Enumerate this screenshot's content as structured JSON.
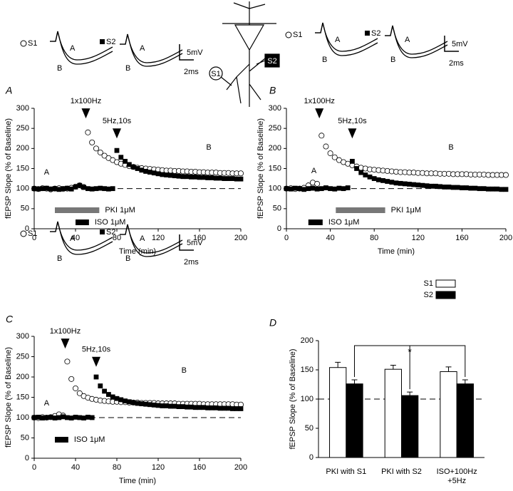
{
  "schematic": {
    "s1": "S1",
    "s2": "S2"
  },
  "chart_data": [
    {
      "type": "scatter",
      "panel": "A",
      "inset": {
        "s1": "S1",
        "s2": "S2",
        "a1": "A",
        "b1": "B",
        "a2": "A",
        "b2": "B",
        "scale_y": "5mV",
        "scale_x": "2ms"
      },
      "xlabel": "Time (min)",
      "ylabel": "fEPSP Slope (% of Baseline)",
      "xlim": [
        0,
        200
      ],
      "xticks": [
        0,
        40,
        80,
        120,
        160,
        200
      ],
      "ylim": [
        0,
        300
      ],
      "yticks": [
        0,
        50,
        100,
        150,
        200,
        250,
        300
      ],
      "baseline": 100,
      "x": [
        0,
        4,
        8,
        12,
        16,
        20,
        24,
        28,
        32,
        36,
        40,
        44,
        48,
        52,
        56,
        60,
        64,
        68,
        72,
        76,
        80,
        84,
        88,
        92,
        96,
        100,
        104,
        108,
        112,
        116,
        120,
        124,
        128,
        132,
        136,
        140,
        144,
        148,
        152,
        156,
        160,
        164,
        168,
        172,
        176,
        180,
        184,
        188,
        192,
        196,
        200
      ],
      "series": [
        {
          "name": "S1",
          "marker": "circle",
          "color": "#ffffff",
          "values": [
            100,
            99,
            101,
            100,
            98,
            100,
            101,
            99,
            100,
            102,
            105,
            108,
            104,
            240,
            215,
            200,
            190,
            182,
            176,
            171,
            166,
            162,
            159,
            156,
            154,
            152,
            151,
            150,
            149,
            148,
            147,
            146,
            145,
            145,
            144,
            144,
            143,
            143,
            142,
            142,
            141,
            141,
            140,
            140,
            140,
            139,
            139,
            139,
            138,
            138,
            138
          ]
        },
        {
          "name": "S2",
          "marker": "square",
          "color": "#000000",
          "values": [
            100,
            99,
            100,
            101,
            99,
            100,
            98,
            100,
            101,
            99,
            104,
            108,
            103,
            100,
            99,
            100,
            101,
            100,
            99,
            100,
            195,
            178,
            168,
            160,
            154,
            150,
            146,
            143,
            141,
            139,
            137,
            135,
            134,
            133,
            132,
            131,
            130,
            130,
            129,
            129,
            128,
            128,
            127,
            127,
            126,
            126,
            125,
            125,
            125,
            124,
            124
          ]
        }
      ],
      "annotations": [
        {
          "text": "1x100Hz",
          "x": 50,
          "y": 275,
          "arrow": true
        },
        {
          "text": "5Hz,10s",
          "x": 80,
          "y": 225,
          "arrow": true
        },
        {
          "text": "A",
          "x": 12,
          "y": 140
        },
        {
          "text": "B",
          "x": 169,
          "y": 202
        }
      ],
      "drug_bars": [
        {
          "label": "PKI 1μM",
          "start": 20,
          "end": 63,
          "color": "#777777"
        },
        {
          "label": "ISO 1μM",
          "start": 40,
          "end": 53,
          "color": "#000000"
        }
      ]
    },
    {
      "type": "scatter",
      "panel": "B",
      "inset": {
        "s1": "S1",
        "s2": "S2",
        "a1": "A",
        "b1": "B",
        "a2": "A",
        "b2": "B",
        "scale_y": "5mV",
        "scale_x": "2ms"
      },
      "xlabel": "Time (min)",
      "ylabel": "fEPSP Slope (% of Baseline)",
      "xlim": [
        0,
        200
      ],
      "xticks": [
        0,
        40,
        80,
        120,
        160,
        200
      ],
      "ylim": [
        0,
        300
      ],
      "yticks": [
        0,
        50,
        100,
        150,
        200,
        250,
        300
      ],
      "baseline": 100,
      "x": [
        0,
        4,
        8,
        12,
        16,
        20,
        24,
        28,
        32,
        36,
        40,
        44,
        48,
        52,
        56,
        60,
        64,
        68,
        72,
        76,
        80,
        84,
        88,
        92,
        96,
        100,
        104,
        108,
        112,
        116,
        120,
        124,
        128,
        132,
        136,
        140,
        144,
        148,
        152,
        156,
        160,
        164,
        168,
        172,
        176,
        180,
        184,
        188,
        192,
        196,
        200
      ],
      "series": [
        {
          "name": "S1",
          "marker": "circle",
          "color": "#ffffff",
          "values": [
            100,
            101,
            99,
            100,
            102,
            108,
            115,
            112,
            232,
            205,
            188,
            178,
            171,
            166,
            162,
            158,
            155,
            152,
            150,
            148,
            147,
            146,
            145,
            144,
            143,
            142,
            141,
            141,
            140,
            140,
            139,
            139,
            138,
            138,
            138,
            137,
            137,
            137,
            136,
            136,
            136,
            136,
            135,
            135,
            135,
            135,
            134,
            134,
            134,
            134,
            134
          ]
        },
        {
          "name": "S2",
          "marker": "square",
          "color": "#000000",
          "values": [
            100,
            99,
            101,
            100,
            98,
            100,
            101,
            99,
            100,
            102,
            100,
            99,
            101,
            100,
            102,
            168,
            150,
            140,
            134,
            129,
            125,
            122,
            120,
            118,
            116,
            114,
            113,
            112,
            111,
            110,
            109,
            108,
            107,
            106,
            106,
            105,
            104,
            104,
            103,
            103,
            102,
            102,
            101,
            101,
            100,
            100,
            99,
            99,
            99,
            98,
            98
          ]
        }
      ],
      "annotations": [
        {
          "text": "1x100Hz",
          "x": 30,
          "y": 275,
          "arrow": true
        },
        {
          "text": "5Hz,10s",
          "x": 60,
          "y": 225,
          "arrow": true
        },
        {
          "text": "A",
          "x": 25,
          "y": 144
        },
        {
          "text": "B",
          "x": 150,
          "y": 202
        }
      ],
      "drug_bars": [
        {
          "label": "PKI 1μM",
          "start": 45,
          "end": 90,
          "color": "#777777"
        },
        {
          "label": "ISO 1μM",
          "start": 20,
          "end": 33,
          "color": "#000000"
        }
      ]
    },
    {
      "type": "scatter",
      "panel": "C",
      "inset": {
        "s1": "S1",
        "s2": "S2",
        "a1": "A",
        "b1": "B",
        "a2": "A",
        "b2": "B",
        "scale_y": "5mV",
        "scale_x": "2ms"
      },
      "xlabel": "Time (min)",
      "ylabel": "fEPSP Slope (% of Baseline)",
      "xlim": [
        0,
        200
      ],
      "xticks": [
        0,
        40,
        80,
        120,
        160,
        200
      ],
      "ylim": [
        0,
        300
      ],
      "yticks": [
        0,
        50,
        100,
        150,
        200,
        250,
        300
      ],
      "baseline": 100,
      "x": [
        0,
        4,
        8,
        12,
        16,
        20,
        24,
        28,
        32,
        36,
        40,
        44,
        48,
        52,
        56,
        60,
        64,
        68,
        72,
        76,
        80,
        84,
        88,
        92,
        96,
        100,
        104,
        108,
        112,
        116,
        120,
        124,
        128,
        132,
        136,
        140,
        144,
        148,
        152,
        156,
        160,
        164,
        168,
        172,
        176,
        180,
        184,
        188,
        192,
        196,
        200
      ],
      "series": [
        {
          "name": "S1",
          "marker": "circle",
          "color": "#ffffff",
          "values": [
            100,
            99,
            101,
            100,
            101,
            104,
            108,
            105,
            238,
            195,
            172,
            160,
            153,
            149,
            146,
            144,
            142,
            141,
            140,
            139,
            139,
            138,
            138,
            137,
            137,
            137,
            136,
            136,
            136,
            136,
            135,
            135,
            135,
            135,
            135,
            134,
            134,
            134,
            134,
            134,
            134,
            133,
            133,
            133,
            133,
            133,
            133,
            133,
            133,
            132,
            132
          ]
        },
        {
          "name": "S2",
          "marker": "square",
          "color": "#000000",
          "values": [
            100,
            101,
            99,
            100,
            101,
            99,
            100,
            102,
            100,
            99,
            101,
            100,
            99,
            101,
            100,
            200,
            178,
            165,
            157,
            151,
            147,
            144,
            141,
            139,
            137,
            135,
            134,
            133,
            132,
            131,
            130,
            129,
            129,
            128,
            128,
            127,
            127,
            126,
            126,
            125,
            125,
            125,
            124,
            124,
            124,
            123,
            123,
            123,
            122,
            122,
            122
          ]
        }
      ],
      "annotations": [
        {
          "text": "1x100Hz",
          "x": 30,
          "y": 270,
          "arrow": true
        },
        {
          "text": "5Hz,10s",
          "x": 60,
          "y": 225,
          "arrow": true
        },
        {
          "text": "A",
          "x": 12,
          "y": 135
        },
        {
          "text": "B",
          "x": 145,
          "y": 216
        }
      ],
      "drug_bars": [
        {
          "label": "ISO 1μM",
          "start": 20,
          "end": 33,
          "color": "#000000"
        }
      ]
    },
    {
      "type": "bar",
      "panel": "D",
      "ylabel": "fEPSP Slope (% of Baseline)",
      "categories": [
        "PKI with S1",
        "PKI with S2",
        "ISO+100Hz\n+5Hz"
      ],
      "ylim": [
        0,
        200
      ],
      "yticks": [
        0,
        50,
        100,
        150,
        200
      ],
      "baseline": 100,
      "series": [
        {
          "name": "S1",
          "color": "#ffffff",
          "values": [
            154,
            151,
            147
          ],
          "errors": [
            9,
            7,
            8
          ]
        },
        {
          "name": "S2",
          "color": "#000000",
          "values": [
            126,
            106,
            126
          ],
          "errors": [
            7,
            6,
            7
          ]
        }
      ],
      "significance": "*"
    }
  ]
}
